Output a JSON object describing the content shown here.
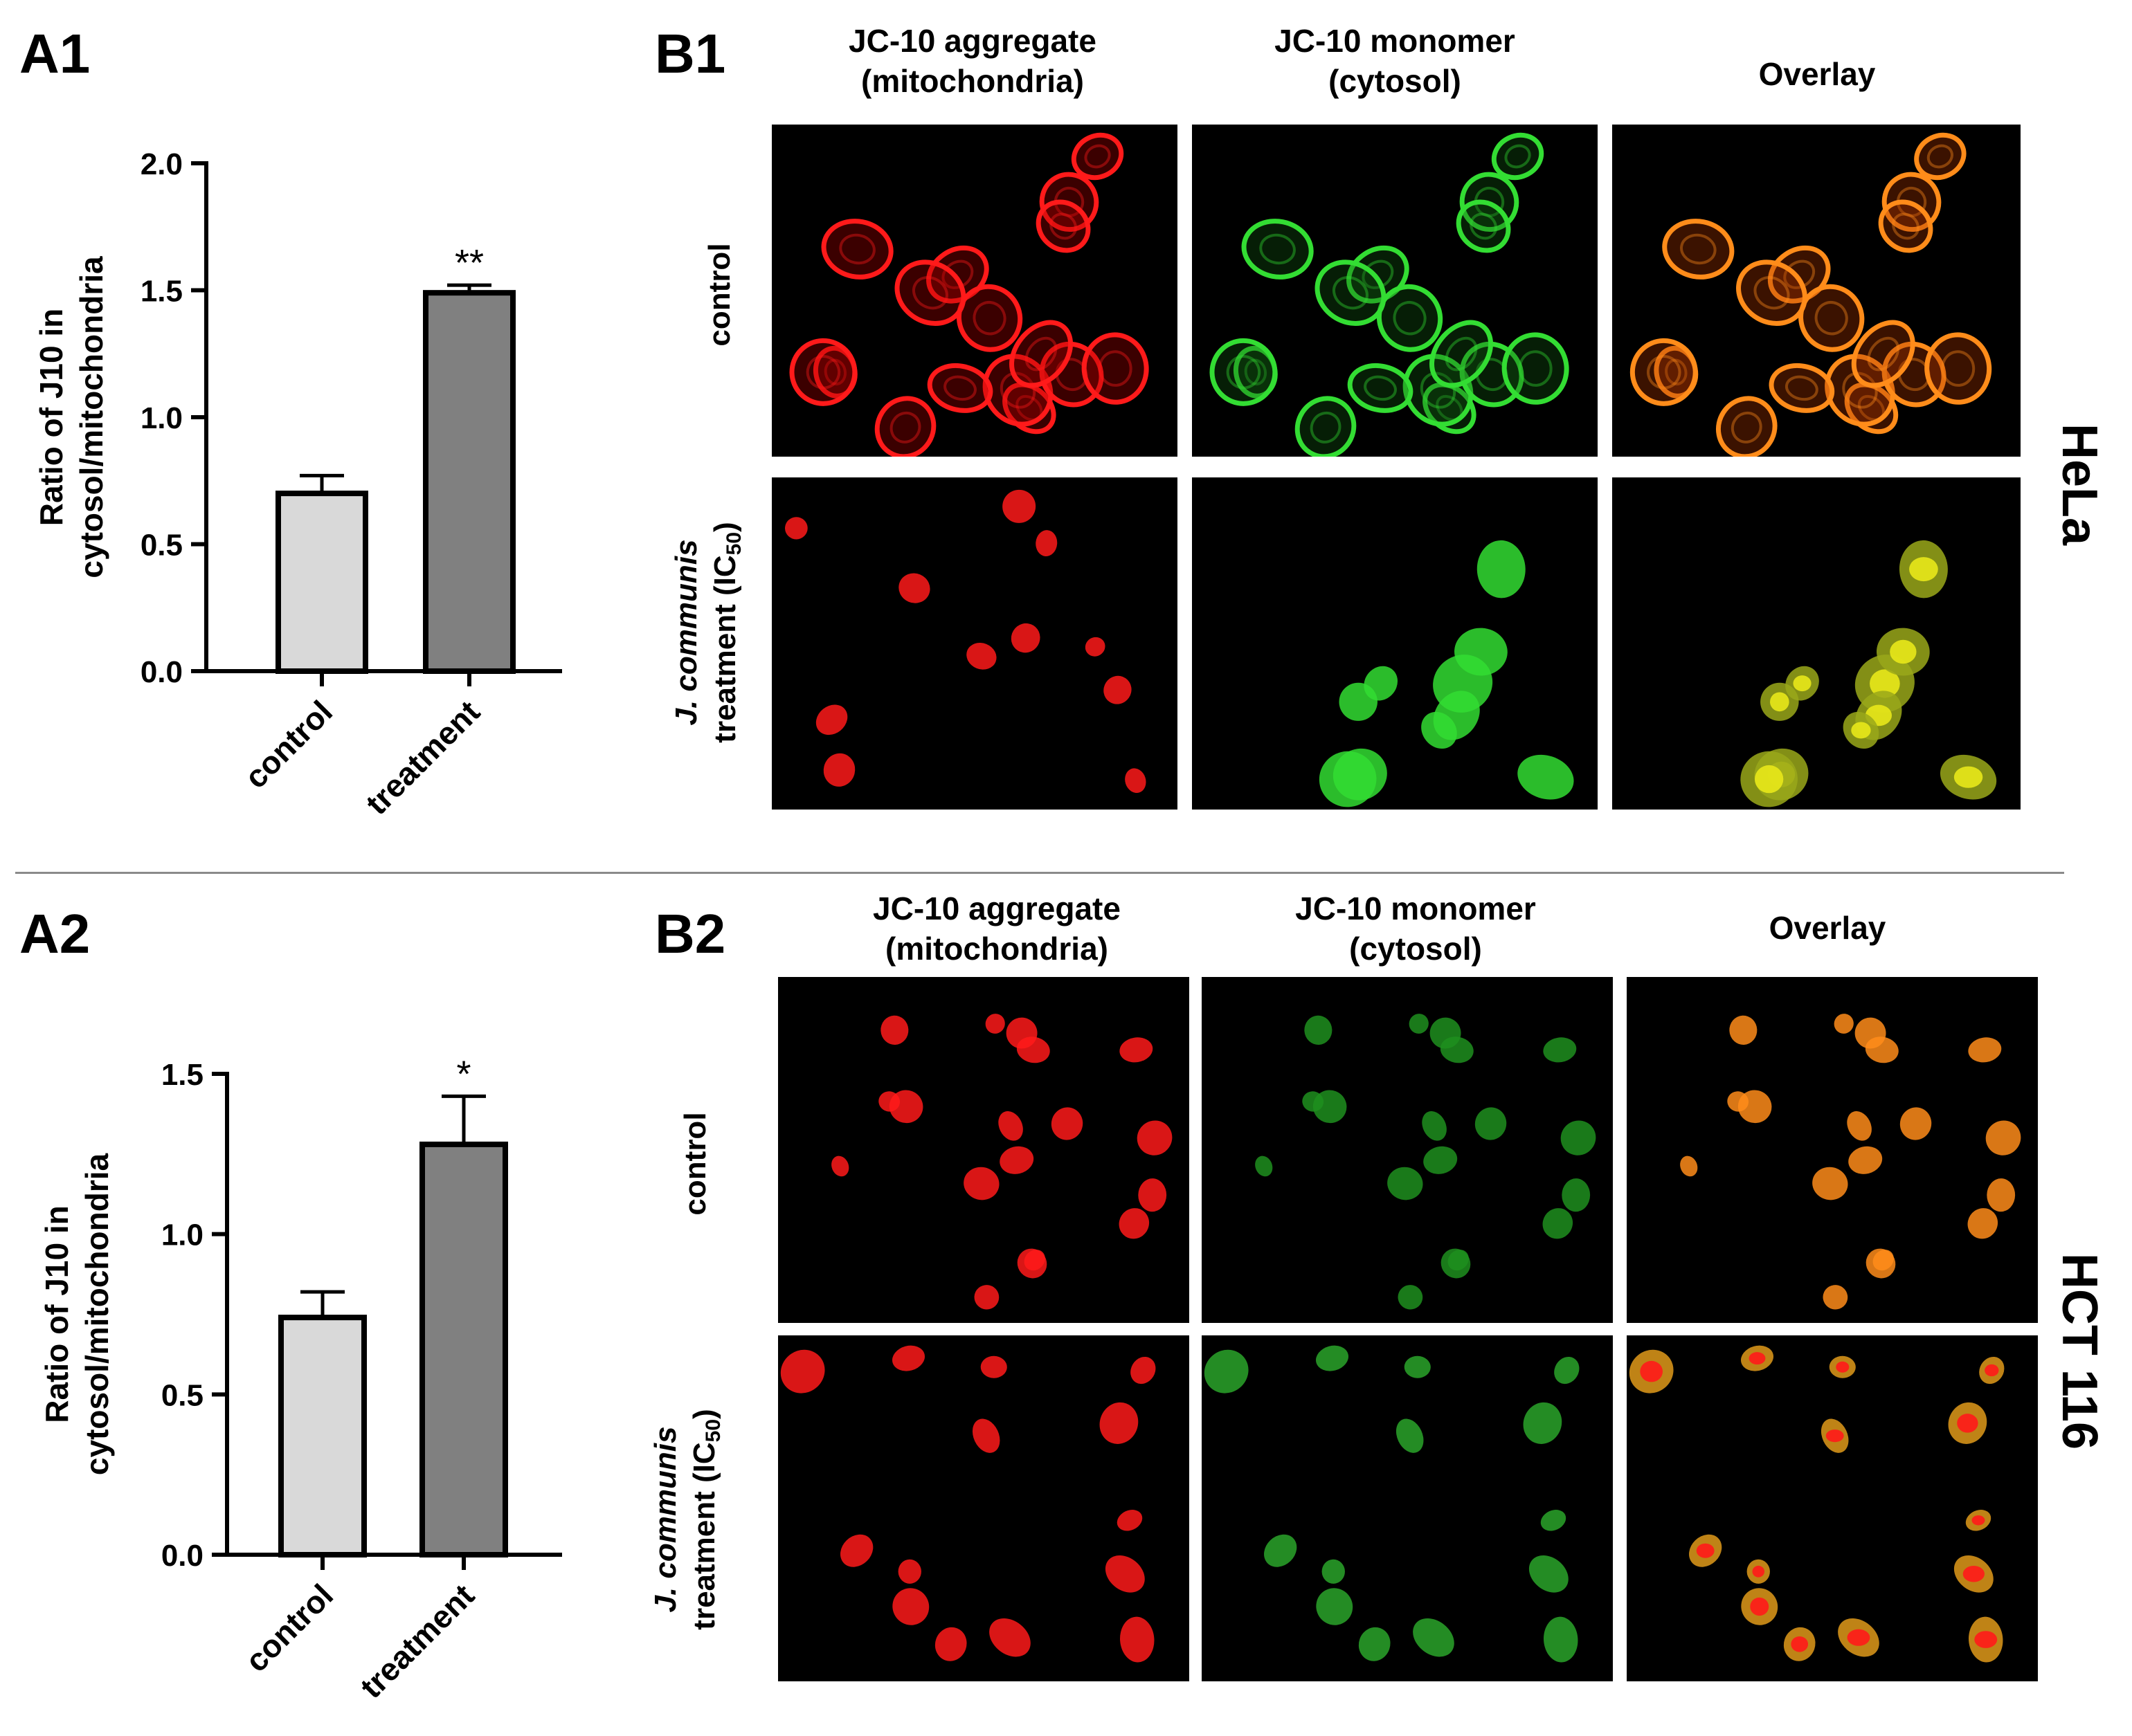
{
  "colors": {
    "control_bar": "#d9d9d9",
    "treatment_bar": "#808080",
    "red_channel": "#ff1a1a",
    "green_channel": "#33dd33",
    "overlay_orange": "#ff8c1a",
    "overlay_yellow": "#e8e81a"
  },
  "panels": {
    "a1": "A1",
    "a2": "A2",
    "b1": "B1",
    "b2": "B2"
  },
  "chart_data": [
    {
      "type": "bar",
      "panel": "A1",
      "categories": [
        "control",
        "treatment"
      ],
      "values": [
        0.7,
        1.49
      ],
      "errors": [
        0.07,
        0.03
      ],
      "significance": [
        "",
        "**"
      ],
      "ylabel_line1": "Ratio of J10 in",
      "ylabel_line2": "cytosol/mitochondria",
      "ylim": [
        0,
        2.0
      ],
      "yticks": [
        "0.0",
        "0.5",
        "1.0",
        "1.5",
        "2.0"
      ],
      "ytick_values": [
        0,
        0.5,
        1.0,
        1.5,
        2.0
      ]
    },
    {
      "type": "bar",
      "panel": "A2",
      "categories": [
        "control",
        "treatment"
      ],
      "values": [
        0.74,
        1.28
      ],
      "errors": [
        0.08,
        0.15
      ],
      "significance": [
        "",
        "*"
      ],
      "ylabel_line1": "Ratio of J10 in",
      "ylabel_line2": "cytosol/mitochondria",
      "ylim": [
        0,
        1.5
      ],
      "yticks": [
        "0.0",
        "0.5",
        "1.0",
        "1.5"
      ],
      "ytick_values": [
        0,
        0.5,
        1.0,
        1.5
      ]
    }
  ],
  "microscopy": {
    "columns": {
      "aggregate_line1": "JC-10 aggregate",
      "aggregate_line2": "(mitochondria)",
      "monomer_line1": "JC-10 monomer",
      "monomer_line2": "(cytosol)",
      "overlay": "Overlay"
    },
    "rows": {
      "control": "control",
      "treatment_species": "J. communis",
      "treatment_line": "treatment (IC",
      "treatment_sub": "50",
      "treatment_close": ")"
    },
    "cell_lines": {
      "top": "HeLa",
      "bottom": "HCT 116"
    }
  }
}
